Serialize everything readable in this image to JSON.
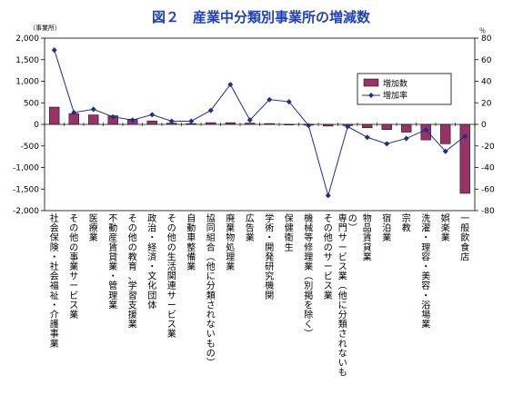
{
  "chart_data": {
    "type": "bar",
    "title": "図２　産業中分類別事業所の増減数",
    "y_left_unit": "（事業所）",
    "y_right_unit": "％",
    "ylim_left": [
      -2000,
      2000
    ],
    "ylim_right": [
      -80,
      80
    ],
    "left_ticks": [
      "2,000",
      "1,500",
      "1,000",
      "500",
      "0",
      "-500",
      "-1,000",
      "-1,500",
      "-2,000"
    ],
    "right_ticks": [
      "80",
      "60",
      "40",
      "20",
      "0",
      "-20",
      "-40",
      "-60",
      "-80"
    ],
    "categories": [
      "社会保険・社会福祉・介護事業",
      "その他の事業サービス業",
      "医療業",
      "不動産賃貸業・管理業",
      "その他の教育，学習支援業",
      "政治・経済・文化団体",
      "その他の生活関連サービス業",
      "自動車整備業",
      "協同組合（他に分類されないもの）",
      "廃棄物処理業",
      "広告業",
      "学術・開発研究機関",
      "保健衛生",
      "機械等修理業（別掲を除く）",
      "その他のサービス業",
      "専門サービス業（他に分類されないもの）",
      "物品賃貸業",
      "宿泊業",
      "宗教",
      "洗濯・理容・美容・浴場業",
      "娯楽業",
      "一般飲食店"
    ],
    "series": [
      {
        "name": "増加数",
        "kind": "bar",
        "axis": "left",
        "color": "#993366",
        "values": [
          400,
          250,
          220,
          200,
          120,
          80,
          30,
          20,
          40,
          40,
          30,
          20,
          0,
          -20,
          -40,
          -30,
          -80,
          -120,
          -180,
          -360,
          -450,
          -1600
        ]
      },
      {
        "name": "増加率",
        "kind": "line",
        "axis": "right",
        "color": "#1c2f8c",
        "values": [
          69,
          11,
          14,
          7,
          4,
          9,
          3,
          3,
          13,
          37,
          4,
          23,
          21,
          -1,
          -66,
          -2,
          -12,
          -18,
          -13,
          -5,
          -25,
          -11
        ]
      }
    ],
    "grid": false,
    "legend_position": "top-right"
  }
}
